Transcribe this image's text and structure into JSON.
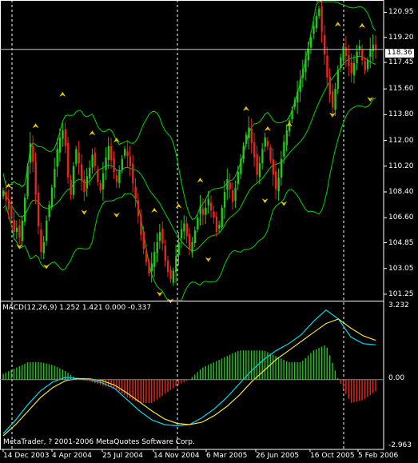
{
  "colors": {
    "background": "#000000",
    "frame": "#ffffff",
    "bull_candle": "#22c91c",
    "bear_candle": "#e8241c",
    "bollinger": "#00d300",
    "fractal": "#e8c200",
    "macd_line": "#00d8e8",
    "signal_line": "#f0e040",
    "hist_up": "#22c91c",
    "hist_down": "#e8241c"
  },
  "price_axis": {
    "labels": [
      "120.95",
      "119.20",
      "117.45",
      "115.60",
      "113.80",
      "112.00",
      "110.20",
      "108.40",
      "106.60",
      "104.85",
      "103.05",
      "101.25"
    ],
    "current_price": "118.36"
  },
  "macd_axis": {
    "labels": [
      "3.232",
      "0.00",
      "-2.963"
    ]
  },
  "date_axis": {
    "labels": [
      "14 Dec 2003",
      "4 Apr 2004",
      "25 Jul 2004",
      "14 Nov 2004",
      "6 Mar 2005",
      "26 Jun 2005",
      "16 Oct 2005",
      "5 Feb 2006"
    ]
  },
  "macd_panel": {
    "title": "MACD(12,26,9) 1.252 1.421 0.000 -0.337"
  },
  "footer": {
    "copyright": "MetaTrader, ? 2001-2006 MetaQuotes Software Corp."
  },
  "chart_data": [
    {
      "type": "candlestick",
      "title": "",
      "ylim": [
        100.8,
        121.7
      ],
      "grid": false,
      "price_line": 118.36,
      "close": [
        108.5,
        107.8,
        107.2,
        106.6,
        105.6,
        105.9,
        105.2,
        106.4,
        108.0,
        110.2,
        111.8,
        110.5,
        108.2,
        106.0,
        104.2,
        104.9,
        106.4,
        107.5,
        108.7,
        110.0,
        111.4,
        112.2,
        112.7,
        111.6,
        109.4,
        108.2,
        110.2,
        111.4,
        110.4,
        109.2,
        108.4,
        109.5,
        110.1,
        111.0,
        110.2,
        109.1,
        108.5,
        109.7,
        110.8,
        111.6,
        110.6,
        109.8,
        109.1,
        109.9,
        110.7,
        111.4,
        110.9,
        110.2,
        109.0,
        107.9,
        106.7,
        105.4,
        104.4,
        103.5,
        102.7,
        103.4,
        104.2,
        104.9,
        105.6,
        104.8,
        103.6,
        102.8,
        102.3,
        102.9,
        103.9,
        104.9,
        105.8,
        106.2,
        105.3,
        104.4,
        104.9,
        105.7,
        106.6,
        107.4,
        106.8,
        107.3,
        107.9,
        107.1,
        106.6,
        105.6,
        106.1,
        107.3,
        108.4,
        109.3,
        108.6,
        107.7,
        108.7,
        109.8,
        110.7,
        111.6,
        112.4,
        112.9,
        111.8,
        110.8,
        109.6,
        110.4,
        111.4,
        112.2,
        111.6,
        110.6,
        109.6,
        108.6,
        109.4,
        110.7,
        111.9,
        112.7,
        113.4,
        114.1,
        114.8,
        115.4,
        116.2,
        117.0,
        117.7,
        118.4,
        119.2,
        120.0,
        120.7,
        121.2,
        119.6,
        118.0,
        116.4,
        115.2,
        114.3,
        115.6,
        116.9,
        117.8,
        118.6,
        117.9,
        117.2,
        116.7,
        117.4,
        118.2,
        118.6,
        117.6,
        116.9,
        117.6,
        118.4,
        118.7,
        118.36
      ],
      "fractal_up_prices": [
        108.6,
        112.8,
        115.0,
        112.3,
        111.8,
        106.9,
        107.2,
        109.0,
        114.0,
        112.6,
        112.9,
        121.6,
        119.9,
        119.8
      ],
      "fractal_down_prices": [
        104.8,
        103.4,
        107.2,
        107.0,
        101.5,
        101.0,
        103.9,
        108.0,
        107.8,
        114.0,
        115.1
      ]
    },
    {
      "type": "bar",
      "title": "MACD(12,26,9)",
      "ylim": [
        -2.963,
        3.232
      ],
      "series": [
        {
          "name": "MACD",
          "values": [
            -2.4,
            -1.8,
            -1.1,
            -0.5,
            -0.1,
            0.1,
            0.05,
            0.0,
            -0.15,
            -0.4,
            -0.9,
            -1.4,
            -1.8,
            -2.0,
            -2.05,
            -2.0,
            -1.7,
            -1.3,
            -0.8,
            -0.2,
            0.4,
            0.9,
            1.3,
            1.6,
            2.0,
            2.6,
            3.1,
            2.7,
            1.9,
            1.6,
            1.55
          ]
        },
        {
          "name": "Signal",
          "values": [
            -2.5,
            -2.0,
            -1.4,
            -0.8,
            -0.35,
            -0.05,
            0.05,
            0.03,
            -0.05,
            -0.25,
            -0.6,
            -1.0,
            -1.4,
            -1.75,
            -1.95,
            -2.0,
            -1.9,
            -1.6,
            -1.2,
            -0.7,
            -0.1,
            0.4,
            0.9,
            1.3,
            1.7,
            2.1,
            2.5,
            2.7,
            2.3,
            1.95,
            1.75
          ]
        }
      ]
    }
  ]
}
